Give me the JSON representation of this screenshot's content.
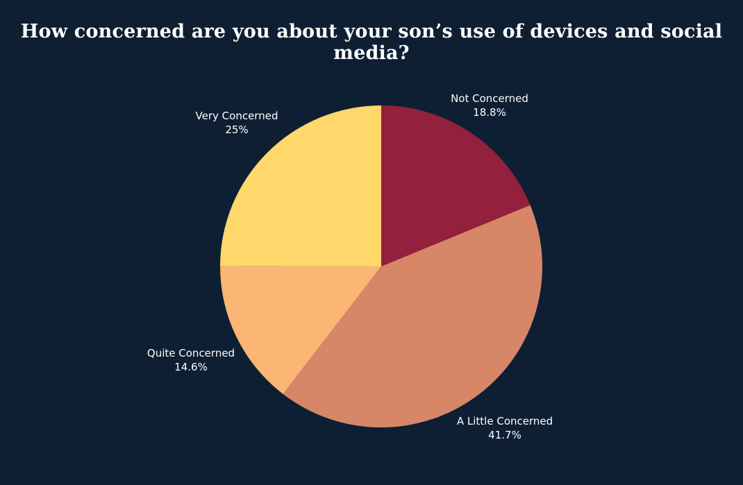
{
  "chart_data": {
    "type": "pie",
    "title": "How concerned are you about your son’s use of devices and social media?",
    "slices": [
      {
        "label": "Not Concerned",
        "value": 18.8,
        "display": "18.8%",
        "color": "#93203d"
      },
      {
        "label": "A Little Concerned",
        "value": 41.7,
        "display": "41.7%",
        "color": "#d78668"
      },
      {
        "label": "Quite Concerned",
        "value": 14.6,
        "display": "14.6%",
        "color": "#fbb574"
      },
      {
        "label": "Very Concerned",
        "value": 25,
        "display": "25%",
        "color": "#ffd76a"
      }
    ],
    "start": "12 o'clock",
    "direction": "clockwise",
    "background": "#0e1f33",
    "label_color": "#ffffff"
  }
}
